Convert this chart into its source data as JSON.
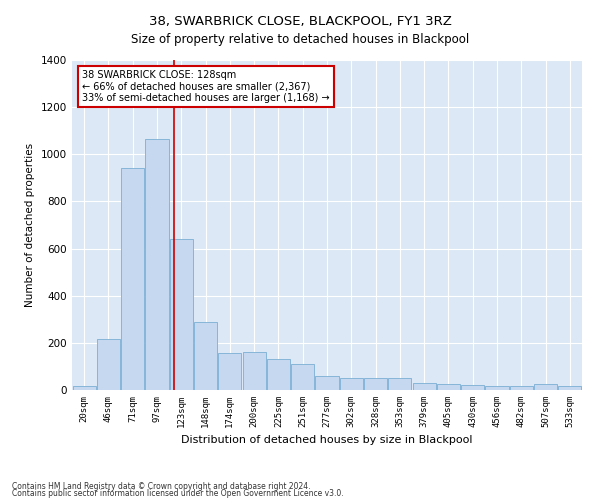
{
  "title": "38, SWARBRICK CLOSE, BLACKPOOL, FY1 3RZ",
  "subtitle": "Size of property relative to detached houses in Blackpool",
  "xlabel": "Distribution of detached houses by size in Blackpool",
  "ylabel": "Number of detached properties",
  "categories": [
    "20sqm",
    "46sqm",
    "71sqm",
    "97sqm",
    "123sqm",
    "148sqm",
    "174sqm",
    "200sqm",
    "225sqm",
    "251sqm",
    "277sqm",
    "302sqm",
    "328sqm",
    "353sqm",
    "379sqm",
    "405sqm",
    "430sqm",
    "456sqm",
    "482sqm",
    "507sqm",
    "533sqm"
  ],
  "values": [
    18,
    218,
    940,
    1065,
    640,
    290,
    155,
    160,
    130,
    110,
    60,
    50,
    50,
    50,
    28,
    25,
    20,
    15,
    15,
    25,
    15
  ],
  "bar_color": "#c5d8ef",
  "bar_edge_color": "#7aafd4",
  "red_line_color": "#cc0000",
  "annotation_title": "38 SWARBRICK CLOSE: 128sqm",
  "annotation_line1": "← 66% of detached houses are smaller (2,367)",
  "annotation_line2": "33% of semi-detached houses are larger (1,168) →",
  "ylim": [
    0,
    1400
  ],
  "yticks": [
    0,
    200,
    400,
    600,
    800,
    1000,
    1200,
    1400
  ],
  "footer1": "Contains HM Land Registry data © Crown copyright and database right 2024.",
  "footer2": "Contains public sector information licensed under the Open Government Licence v3.0.",
  "bg_color": "#ffffff",
  "plot_bg_color": "#dce8f5"
}
